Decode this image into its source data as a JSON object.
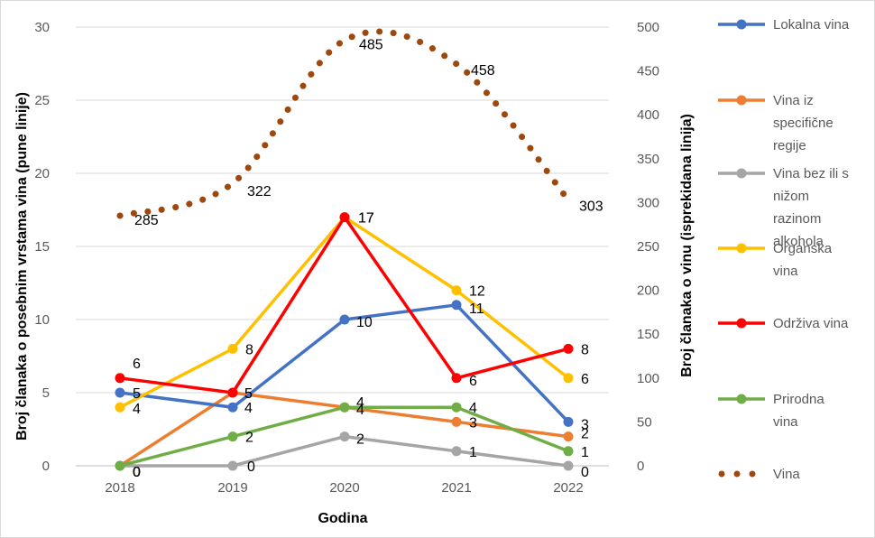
{
  "chart_data": {
    "type": "line",
    "categories": [
      "2018",
      "2019",
      "2020",
      "2021",
      "2022"
    ],
    "xlabel": "Godina",
    "ylabel": "Broj članaka o posebnim vrstama vina (pune linije)",
    "y2label": "Broj članaka o vinu (isprekidana linija)",
    "ylim": [
      0,
      30
    ],
    "y2lim": [
      0,
      500
    ],
    "yticks": [
      "0",
      "5",
      "10",
      "15",
      "20",
      "25",
      "30"
    ],
    "y2ticks": [
      "0",
      "50",
      "100",
      "150",
      "200",
      "250",
      "300",
      "350",
      "400",
      "450",
      "500"
    ],
    "grid": true,
    "legend_position": "right",
    "series": [
      {
        "name": "Lokalna vina",
        "values": [
          5,
          4,
          10,
          11,
          3
        ],
        "labels": [
          "5",
          "4",
          "10",
          "11",
          "3"
        ],
        "color": "#4472C4",
        "axis": "primary",
        "style": "solid"
      },
      {
        "name": "Vina iz specifične regije",
        "values": [
          0,
          5,
          4,
          3,
          2
        ],
        "labels": [
          "0",
          "5",
          "4",
          "3",
          "2"
        ],
        "color": "#ED7D31",
        "axis": "primary",
        "style": "solid"
      },
      {
        "name": "Vina bez ili s nižom razinom alkohola",
        "values": [
          0,
          0,
          2,
          1,
          0
        ],
        "labels": [
          "0",
          "0",
          "2",
          "1",
          "0"
        ],
        "color": "#A5A5A5",
        "axis": "primary",
        "style": "solid"
      },
      {
        "name": "Organska vina",
        "values": [
          4,
          8,
          17,
          12,
          6
        ],
        "labels": [
          "4",
          "8",
          "17",
          "12",
          "6"
        ],
        "color": "#FFC000",
        "axis": "primary",
        "style": "solid"
      },
      {
        "name": "Održiva vina",
        "values": [
          6,
          5,
          17,
          6,
          8
        ],
        "labels": [
          "6",
          "5",
          "17",
          "6",
          "8"
        ],
        "color": "#FF0000",
        "axis": "primary",
        "style": "solid"
      },
      {
        "name": "Prirodna vina",
        "values": [
          0,
          2,
          4,
          4,
          1
        ],
        "labels": [
          "0",
          "2",
          "4",
          "4",
          "1"
        ],
        "color": "#70AD47",
        "axis": "primary",
        "style": "solid"
      },
      {
        "name": "Vina",
        "values": [
          285,
          322,
          485,
          458,
          303
        ],
        "labels": [
          "285",
          "322",
          "485",
          "458",
          "303"
        ],
        "color": "#9E480E",
        "axis": "secondary",
        "style": "dotted"
      }
    ],
    "legend": [
      {
        "lines": [
          "Lokalna vina"
        ]
      },
      {
        "lines": [
          "Vina iz",
          "specifične",
          "regije"
        ]
      },
      {
        "lines": [
          "Vina bez ili s",
          "nižom",
          "razinom",
          "alkohola"
        ]
      },
      {
        "lines": [
          "Organska",
          "vina"
        ]
      },
      {
        "lines": [
          "Održiva vina"
        ]
      },
      {
        "lines": [
          "Prirodna",
          "vina"
        ]
      },
      {
        "lines": [
          "Vina"
        ]
      }
    ]
  }
}
